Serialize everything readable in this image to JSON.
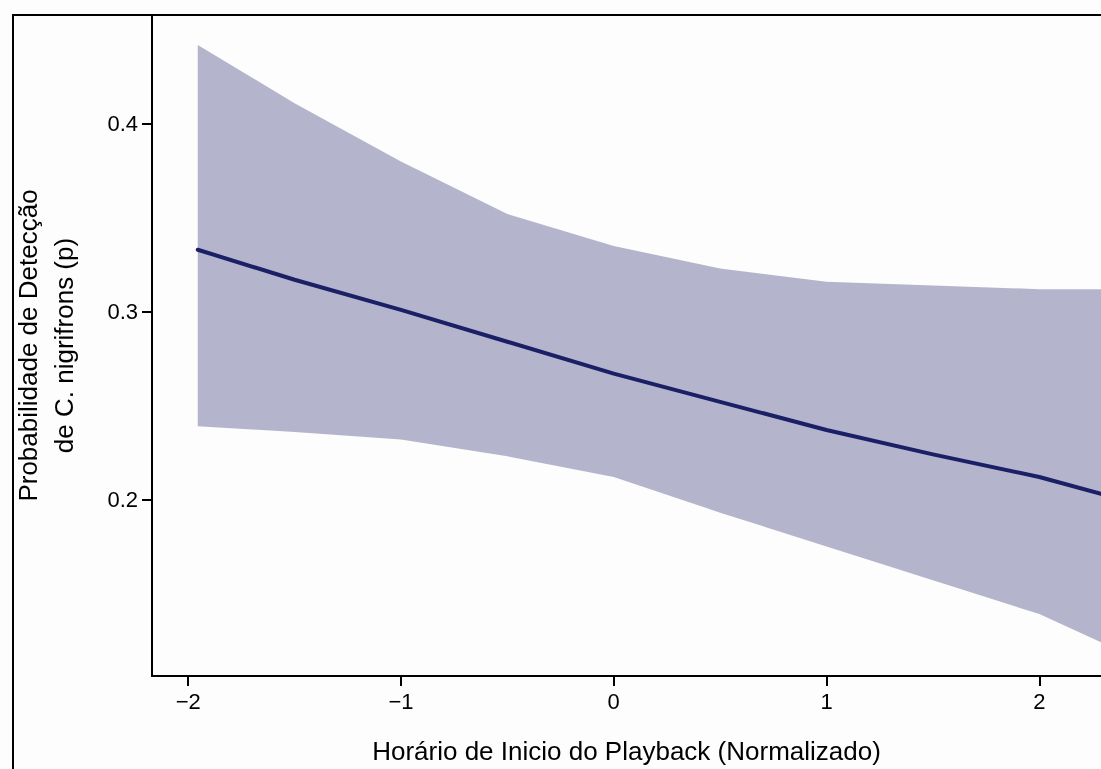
{
  "chart_data": {
    "type": "line",
    "xlabel": "Horário de Inicio do Playback (Normalizado)",
    "ylabel": "Probabilidade de Detecção\nde C. nigrifrons (p)",
    "x": [
      -1.955,
      -1.5,
      -1,
      -0.5,
      0,
      0.5,
      1,
      1.5,
      2,
      2.29
    ],
    "series": [
      {
        "color": "#1b1f66",
        "values": [
          0.333,
          0.317,
          0.301,
          0.284,
          0.267,
          0.252,
          0.237,
          0.224,
          0.212,
          0.203
        ],
        "lower": [
          0.239,
          0.236,
          0.232,
          0.223,
          0.212,
          0.193,
          0.175,
          0.157,
          0.139,
          0.124
        ],
        "upper": [
          0.442,
          0.411,
          0.38,
          0.352,
          0.335,
          0.323,
          0.316,
          0.314,
          0.312,
          0.312
        ]
      }
    ],
    "xlim": [
      -2.17,
      2.29
    ],
    "xticks": [
      -2,
      -1,
      0,
      1,
      2
    ],
    "ylim": [
      0.106,
      0.458
    ],
    "yticks": [
      0.2,
      0.3,
      0.4
    ],
    "marker": "none",
    "line_style": "solid"
  }
}
